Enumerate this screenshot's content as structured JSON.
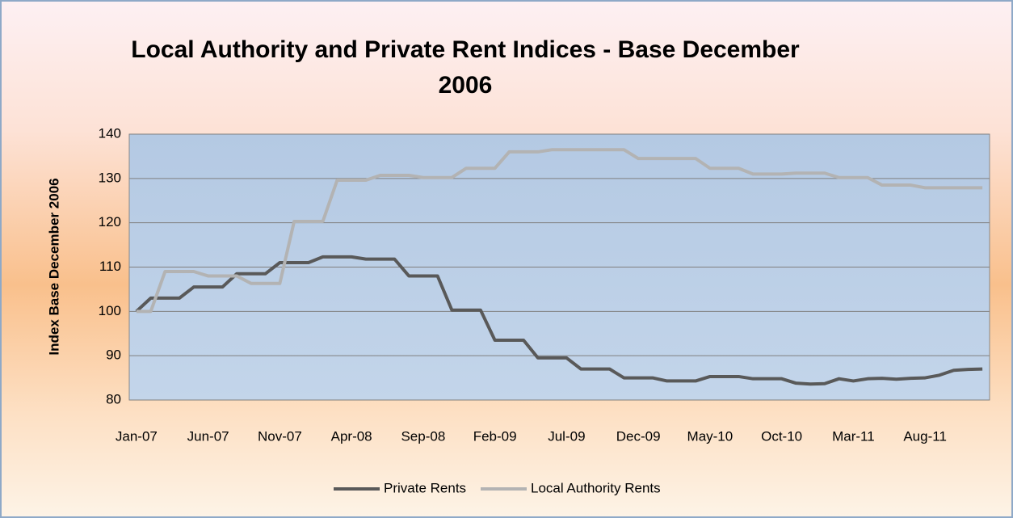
{
  "chart_data": {
    "type": "line",
    "title": "Local Authority and Private Rent Indices - Base December 2006",
    "y_label": "Index Base December 2006",
    "categories": [
      "Jan-07",
      null,
      null,
      null,
      null,
      "Jun-07",
      null,
      null,
      null,
      null,
      "Nov-07",
      null,
      null,
      null,
      null,
      "Apr-08",
      null,
      null,
      null,
      null,
      "Sep-08",
      null,
      null,
      null,
      null,
      "Feb-09",
      null,
      null,
      null,
      null,
      "Jul-09",
      null,
      null,
      null,
      null,
      "Dec-09",
      null,
      null,
      null,
      null,
      "May-10",
      null,
      null,
      null,
      null,
      "Oct-10",
      null,
      null,
      null,
      null,
      "Mar-11",
      null,
      null,
      null,
      null,
      "Aug-11",
      null,
      null,
      null,
      null
    ],
    "series": [
      {
        "name": "Private Rents",
        "color": "#595959",
        "values": [
          100,
          103,
          103,
          103,
          105.5,
          105.5,
          105.5,
          108.5,
          108.5,
          108.5,
          111,
          111,
          111,
          112.3,
          112.3,
          112.3,
          111.8,
          111.8,
          111.8,
          108,
          108,
          108,
          100.3,
          100.3,
          100.3,
          93.5,
          93.5,
          93.5,
          89.5,
          89.5,
          89.5,
          87,
          87,
          87,
          85,
          85,
          85,
          84.3,
          84.3,
          84.3,
          85.3,
          85.3,
          85.3,
          84.8,
          84.8,
          84.8,
          83.8,
          83.6,
          83.7,
          84.8,
          84.3,
          84.8,
          84.9,
          84.7,
          84.9,
          85,
          85.6,
          86.7,
          86.9,
          87
        ]
      },
      {
        "name": "Local Authority Rents",
        "color": "#b3b3b3",
        "values": [
          100,
          100,
          109,
          109,
          109,
          108,
          108,
          108,
          106.3,
          106.3,
          106.3,
          120.3,
          120.3,
          120.3,
          129.6,
          129.6,
          129.6,
          130.7,
          130.7,
          130.7,
          130.2,
          130.2,
          130.2,
          132.3,
          132.3,
          132.3,
          136,
          136,
          136,
          136.5,
          136.5,
          136.5,
          136.5,
          136.5,
          136.5,
          134.5,
          134.5,
          134.5,
          134.5,
          134.5,
          132.3,
          132.3,
          132.3,
          131,
          131,
          131,
          131.2,
          131.2,
          131.2,
          130.2,
          130.2,
          130.2,
          128.5,
          128.5,
          128.5,
          127.9,
          127.9,
          127.9,
          127.9,
          127.9
        ]
      }
    ],
    "ylim": [
      80,
      140
    ],
    "yticks": [
      80,
      90,
      100,
      110,
      120,
      130,
      140
    ],
    "grid": true,
    "legend": "bottom"
  }
}
